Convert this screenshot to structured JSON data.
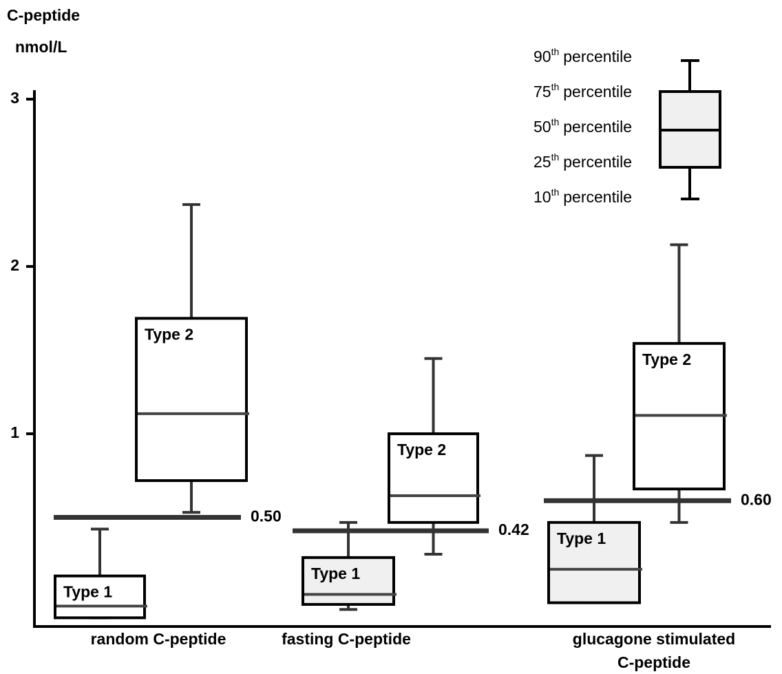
{
  "chart_data": {
    "type": "box",
    "ylabel_lines": [
      "C-peptide",
      "nmol/L"
    ],
    "ylim": [
      -0.15,
      3.05
    ],
    "yticks": [
      1,
      2,
      3
    ],
    "groups": [
      {
        "label_lines": [
          "random C-peptide"
        ],
        "threshold": {
          "value": 0.5,
          "label": "0.50"
        },
        "boxes": [
          {
            "name": "Type 1",
            "color": "#ffffff",
            "whisker_low": -0.1,
            "q1": -0.1,
            "median": -0.03,
            "q3": 0.15,
            "whisker_high": 0.43
          },
          {
            "name": "Type 2",
            "color": "#ffffff",
            "whisker_low": 0.53,
            "q1": 0.72,
            "median": 1.12,
            "q3": 1.69,
            "whisker_high": 2.37
          }
        ]
      },
      {
        "label_lines": [
          "fasting C-peptide"
        ],
        "threshold": {
          "value": 0.42,
          "label": "0.42"
        },
        "boxes": [
          {
            "name": "Type 1",
            "color": "#f0f0f0",
            "whisker_low": -0.05,
            "q1": -0.02,
            "median": 0.04,
            "q3": 0.26,
            "whisker_high": 0.47
          },
          {
            "name": "Type 2",
            "color": "#ffffff",
            "whisker_low": 0.28,
            "q1": 0.47,
            "median": 0.63,
            "q3": 1.0,
            "whisker_high": 1.45
          }
        ]
      },
      {
        "label_lines": [
          "glucagone stimulated",
          "C-peptide"
        ],
        "threshold": {
          "value": 0.6,
          "label": "0.60"
        },
        "boxes": [
          {
            "name": "Type 1",
            "color": "#f0f0f0",
            "whisker_low": -0.01,
            "q1": -0.01,
            "median": 0.19,
            "q3": 0.47,
            "whisker_high": 0.87
          },
          {
            "name": "Type 2",
            "color": "#ffffff",
            "whisker_low": 0.47,
            "q1": 0.67,
            "median": 1.11,
            "q3": 1.54,
            "whisker_high": 2.13
          }
        ]
      }
    ],
    "key": [
      {
        "num": "90",
        "sup": "th",
        "rest": "percentile"
      },
      {
        "num": "75",
        "sup": "th",
        "rest": "percentile"
      },
      {
        "num": "50",
        "sup": "th",
        "rest": "percentile"
      },
      {
        "num": "25",
        "sup": "th",
        "rest": "percentile"
      },
      {
        "num": "10",
        "sup": "th",
        "rest": "percentile"
      }
    ]
  }
}
